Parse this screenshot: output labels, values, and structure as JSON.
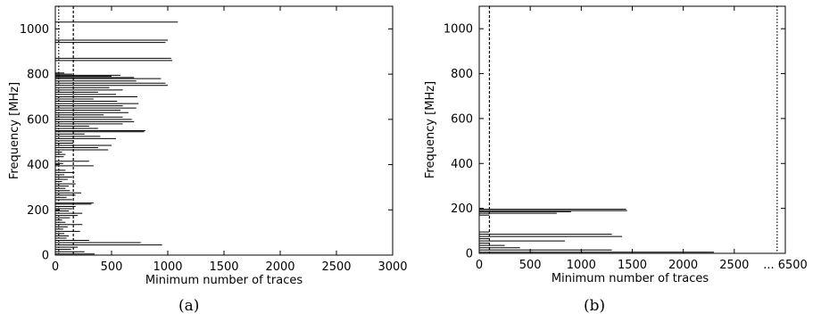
{
  "chart_data": [
    {
      "panel_label": "(a)",
      "type": "bar",
      "orientation": "horizontal",
      "xlabel": "Minimum number of traces",
      "ylabel": "Frequency [MHz]",
      "xlim": [
        0,
        3000
      ],
      "ylim": [
        0,
        1100
      ],
      "xticks": [
        "0",
        "500",
        "1000",
        "1500",
        "2000",
        "2500",
        "3000"
      ],
      "yticks": [
        "0",
        "200",
        "400",
        "600",
        "800",
        "1000"
      ],
      "vlines": [
        {
          "x": 30,
          "style": "dotted"
        },
        {
          "x": 160,
          "style": "dashed"
        }
      ],
      "bars": [
        {
          "y": 5,
          "value": 350
        },
        {
          "y": 15,
          "value": 260
        },
        {
          "y": 25,
          "value": 140
        },
        {
          "y": 35,
          "value": 200
        },
        {
          "y": 45,
          "value": 950
        },
        {
          "y": 55,
          "value": 760
        },
        {
          "y": 65,
          "value": 300
        },
        {
          "y": 75,
          "value": 100
        },
        {
          "y": 85,
          "value": 120
        },
        {
          "y": 95,
          "value": 80
        },
        {
          "y": 105,
          "value": 220
        },
        {
          "y": 115,
          "value": 70
        },
        {
          "y": 125,
          "value": 110
        },
        {
          "y": 135,
          "value": 240
        },
        {
          "y": 145,
          "value": 90
        },
        {
          "y": 155,
          "value": 60
        },
        {
          "y": 165,
          "value": 130
        },
        {
          "y": 175,
          "value": 200
        },
        {
          "y": 185,
          "value": 240
        },
        {
          "y": 195,
          "value": 120
        },
        {
          "y": 205,
          "value": 150
        },
        {
          "y": 215,
          "value": 180
        },
        {
          "y": 225,
          "value": 320
        },
        {
          "y": 230,
          "value": 340
        },
        {
          "y": 245,
          "value": 150
        },
        {
          "y": 255,
          "value": 100
        },
        {
          "y": 265,
          "value": 180
        },
        {
          "y": 275,
          "value": 230
        },
        {
          "y": 285,
          "value": 130
        },
        {
          "y": 295,
          "value": 90
        },
        {
          "y": 305,
          "value": 120
        },
        {
          "y": 315,
          "value": 180
        },
        {
          "y": 325,
          "value": 60
        },
        {
          "y": 335,
          "value": 110
        },
        {
          "y": 345,
          "value": 150
        },
        {
          "y": 355,
          "value": 80
        },
        {
          "y": 365,
          "value": 170
        },
        {
          "y": 375,
          "value": 90
        },
        {
          "y": 395,
          "value": 340
        },
        {
          "y": 405,
          "value": 70
        },
        {
          "y": 415,
          "value": 300
        },
        {
          "y": 435,
          "value": 75
        },
        {
          "y": 445,
          "value": 90
        },
        {
          "y": 455,
          "value": 60
        },
        {
          "y": 465,
          "value": 470
        },
        {
          "y": 475,
          "value": 380
        },
        {
          "y": 485,
          "value": 500
        },
        {
          "y": 495,
          "value": 160
        },
        {
          "y": 505,
          "value": 160
        },
        {
          "y": 515,
          "value": 540
        },
        {
          "y": 525,
          "value": 400
        },
        {
          "y": 535,
          "value": 260
        },
        {
          "y": 545,
          "value": 790
        },
        {
          "y": 550,
          "value": 800
        },
        {
          "y": 560,
          "value": 380
        },
        {
          "y": 570,
          "value": 300
        },
        {
          "y": 580,
          "value": 600
        },
        {
          "y": 590,
          "value": 700
        },
        {
          "y": 600,
          "value": 680
        },
        {
          "y": 610,
          "value": 600
        },
        {
          "y": 620,
          "value": 430
        },
        {
          "y": 630,
          "value": 650
        },
        {
          "y": 640,
          "value": 580
        },
        {
          "y": 650,
          "value": 720
        },
        {
          "y": 660,
          "value": 600
        },
        {
          "y": 670,
          "value": 740
        },
        {
          "y": 680,
          "value": 550
        },
        {
          "y": 690,
          "value": 340
        },
        {
          "y": 700,
          "value": 730
        },
        {
          "y": 710,
          "value": 540
        },
        {
          "y": 720,
          "value": 380
        },
        {
          "y": 730,
          "value": 600
        },
        {
          "y": 740,
          "value": 480
        },
        {
          "y": 750,
          "value": 1000
        },
        {
          "y": 760,
          "value": 980
        },
        {
          "y": 770,
          "value": 720
        },
        {
          "y": 780,
          "value": 940
        },
        {
          "y": 785,
          "value": 700
        },
        {
          "y": 790,
          "value": 500
        },
        {
          "y": 795,
          "value": 580
        },
        {
          "y": 800,
          "value": 150
        },
        {
          "y": 805,
          "value": 80
        },
        {
          "y": 860,
          "value": 1040
        },
        {
          "y": 870,
          "value": 1030
        },
        {
          "y": 940,
          "value": 980
        },
        {
          "y": 950,
          "value": 1000
        },
        {
          "y": 1030,
          "value": 1090
        }
      ]
    },
    {
      "panel_label": "(b)",
      "type": "bar",
      "orientation": "horizontal",
      "xlabel": "Minimum number of traces",
      "ylabel": "Frequency [MHz]",
      "xlim": [
        0,
        3000
      ],
      "ylim": [
        0,
        1100
      ],
      "xticks": [
        "0",
        "500",
        "1000",
        "1500",
        "2000",
        "2500",
        "... 6500"
      ],
      "yticks": [
        "0",
        "200",
        "400",
        "600",
        "800",
        "1000"
      ],
      "vlines": [
        {
          "x": 100,
          "style": "dashed"
        },
        {
          "x": 2920,
          "style": "dotted"
        }
      ],
      "bars": [
        {
          "y": 5,
          "value": 2300
        },
        {
          "y": 15,
          "value": 1300
        },
        {
          "y": 25,
          "value": 400
        },
        {
          "y": 35,
          "value": 250
        },
        {
          "y": 45,
          "value": 100
        },
        {
          "y": 55,
          "value": 840
        },
        {
          "y": 65,
          "value": 100
        },
        {
          "y": 75,
          "value": 1400
        },
        {
          "y": 85,
          "value": 1300
        },
        {
          "y": 95,
          "value": 100
        },
        {
          "y": 170,
          "value": 100
        },
        {
          "y": 178,
          "value": 760
        },
        {
          "y": 185,
          "value": 900
        },
        {
          "y": 190,
          "value": 1450
        },
        {
          "y": 196,
          "value": 1440
        }
      ]
    }
  ]
}
